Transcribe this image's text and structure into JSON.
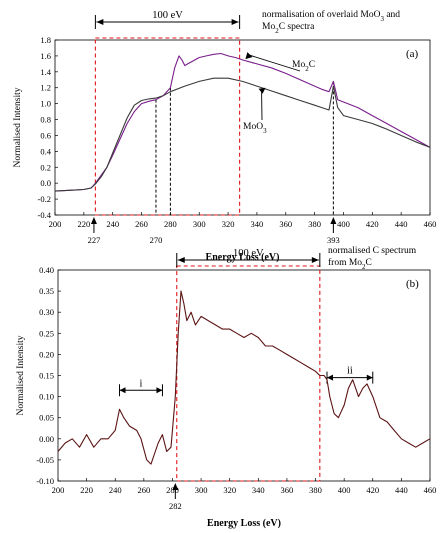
{
  "colors": {
    "mo2c": "#7a1e8c",
    "moo3": "#3a3a3a",
    "carbon": "#5c1414",
    "window": "#e0171b",
    "axis": "#000000"
  },
  "chart_data": [
    {
      "type": "line",
      "panel_label": "(a)",
      "title": "normalisation of overlaid MoO3 and Mo2C spectra",
      "title_lines": [
        "normalisation of overlaid MoO",
        "3",
        " and",
        "Mo",
        "2",
        "C spectra"
      ],
      "xlabel": "Energy Loss (eV)",
      "ylabel": "Normalised Intensity",
      "xlim": [
        200,
        460
      ],
      "ylim": [
        -0.4,
        1.8
      ],
      "xticks": [
        "200",
        "220",
        "240",
        "260",
        "280",
        "300",
        "320",
        "340",
        "360",
        "380",
        "400",
        "420",
        "440",
        "460"
      ],
      "yticks": [
        "-0.4",
        "-0.2",
        "0.0",
        "0.2",
        "0.4",
        "0.6",
        "0.8",
        "1.0",
        "1.2",
        "1.4",
        "1.6",
        "1.8"
      ],
      "grid": false,
      "window": {
        "x_start": 228,
        "x_end": 328,
        "label": "100 eV"
      },
      "markers": [
        {
          "x": 227,
          "label": "227",
          "arrow": true
        },
        {
          "x": 270,
          "label": "270",
          "arrow": false
        },
        {
          "x": 280,
          "label": "",
          "arrow": false
        },
        {
          "x": 393,
          "label": "393",
          "arrow": true
        }
      ],
      "series": [
        {
          "name": "Mo2C",
          "name_parts": [
            "Mo",
            "2",
            "C"
          ],
          "x": [
            200,
            210,
            220,
            225,
            228,
            232,
            236,
            240,
            245,
            250,
            255,
            260,
            265,
            270,
            275,
            280,
            283,
            286,
            288,
            290,
            295,
            300,
            305,
            310,
            315,
            320,
            325,
            330,
            340,
            350,
            360,
            370,
            380,
            385,
            390,
            393,
            396,
            400,
            410,
            420,
            430,
            440,
            450,
            460
          ],
          "values": [
            -0.1,
            -0.09,
            -0.08,
            -0.06,
            0.0,
            0.1,
            0.2,
            0.35,
            0.55,
            0.75,
            0.9,
            1.0,
            1.03,
            1.05,
            1.1,
            1.2,
            1.45,
            1.6,
            1.55,
            1.48,
            1.53,
            1.58,
            1.6,
            1.62,
            1.63,
            1.6,
            1.58,
            1.55,
            1.5,
            1.45,
            1.38,
            1.3,
            1.22,
            1.18,
            1.15,
            1.28,
            1.05,
            1.02,
            0.95,
            0.85,
            0.75,
            0.65,
            0.55,
            0.45
          ]
        },
        {
          "name": "MoO3",
          "name_parts": [
            "MoO",
            "3"
          ],
          "x": [
            200,
            210,
            220,
            225,
            228,
            232,
            236,
            240,
            245,
            250,
            255,
            260,
            265,
            270,
            275,
            280,
            290,
            300,
            310,
            320,
            330,
            340,
            350,
            360,
            370,
            380,
            385,
            390,
            393,
            396,
            400,
            410,
            420,
            430,
            440,
            450,
            460
          ],
          "values": [
            -0.1,
            -0.09,
            -0.08,
            -0.06,
            -0.01,
            0.08,
            0.2,
            0.38,
            0.6,
            0.82,
            0.98,
            1.04,
            1.06,
            1.07,
            1.1,
            1.15,
            1.22,
            1.28,
            1.32,
            1.32,
            1.28,
            1.22,
            1.16,
            1.1,
            1.04,
            0.98,
            0.95,
            0.92,
            1.22,
            0.95,
            0.85,
            0.8,
            0.75,
            0.68,
            0.6,
            0.52,
            0.45
          ]
        }
      ]
    },
    {
      "type": "line",
      "panel_label": "(b)",
      "title": "normalised C spectrum from Mo2C",
      "title_lines": [
        "normalised C spectrum",
        "from Mo",
        "2",
        "C"
      ],
      "xlabel": "Energy Loss (eV)",
      "ylabel": "Normalised Intensity",
      "xlim": [
        200,
        460
      ],
      "ylim": [
        -0.1,
        0.4
      ],
      "xticks": [
        "200",
        "220",
        "240",
        "260",
        "280",
        "300",
        "320",
        "340",
        "360",
        "380",
        "400",
        "420",
        "440",
        "460"
      ],
      "yticks": [
        "-0.10",
        "-0.05",
        "0.00",
        "0.05",
        "0.10",
        "0.15",
        "0.20",
        "0.25",
        "0.30",
        "0.35",
        "0.40"
      ],
      "grid": false,
      "window": {
        "x_start": 283,
        "x_end": 383,
        "label": "100 eV"
      },
      "markers": [
        {
          "x": 282,
          "label": "282",
          "arrow": true
        }
      ],
      "regions": [
        {
          "label": "i",
          "x_start": 243,
          "x_end": 273
        },
        {
          "label": "ii",
          "x_start": 388,
          "x_end": 420
        }
      ],
      "series": [
        {
          "name": "C",
          "x": [
            200,
            205,
            210,
            215,
            220,
            225,
            230,
            235,
            240,
            243,
            246,
            250,
            255,
            258,
            262,
            265,
            268,
            270,
            273,
            276,
            279,
            282,
            284,
            286,
            288,
            290,
            293,
            296,
            300,
            305,
            310,
            315,
            320,
            325,
            330,
            335,
            340,
            345,
            350,
            355,
            360,
            365,
            370,
            375,
            380,
            383,
            386,
            388,
            390,
            393,
            396,
            400,
            403,
            406,
            410,
            413,
            416,
            420,
            425,
            430,
            435,
            440,
            445,
            450,
            455,
            460
          ],
          "values": [
            -0.03,
            -0.01,
            0.0,
            -0.02,
            0.01,
            -0.02,
            0.0,
            0.0,
            0.02,
            0.07,
            0.05,
            0.03,
            0.02,
            0.0,
            -0.05,
            -0.06,
            -0.03,
            -0.01,
            0.01,
            -0.03,
            -0.02,
            0.1,
            0.25,
            0.35,
            0.32,
            0.28,
            0.3,
            0.27,
            0.29,
            0.28,
            0.27,
            0.26,
            0.26,
            0.25,
            0.24,
            0.25,
            0.24,
            0.22,
            0.22,
            0.21,
            0.2,
            0.19,
            0.18,
            0.17,
            0.16,
            0.15,
            0.15,
            0.14,
            0.1,
            0.06,
            0.05,
            0.08,
            0.12,
            0.14,
            0.1,
            0.12,
            0.13,
            0.1,
            0.05,
            0.04,
            0.02,
            0.0,
            -0.01,
            -0.02,
            -0.01,
            0.0
          ]
        }
      ]
    }
  ]
}
